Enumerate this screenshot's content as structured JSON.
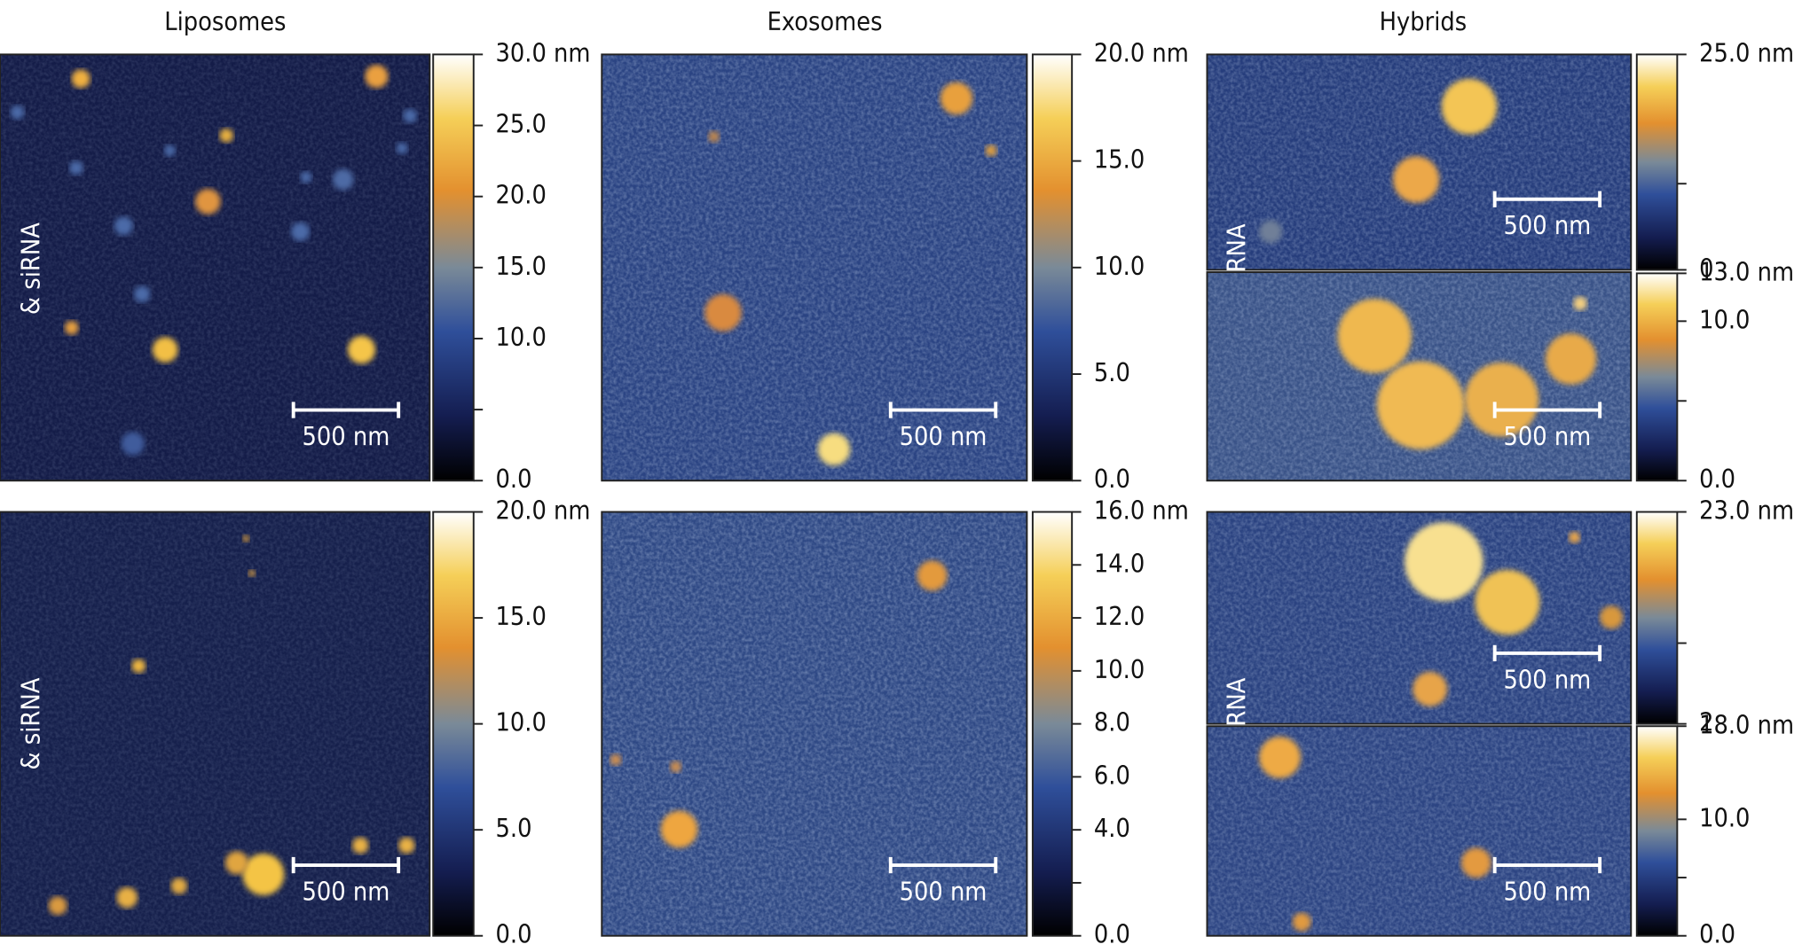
{
  "columns": [
    "Liposomes",
    "Exosomes",
    "Hybrids"
  ],
  "panels": [
    {
      "side_label": "& siRNA",
      "scale_bar": "500 nm",
      "colorbar": {
        "lim": [
          0,
          30
        ],
        "ticks": [
          0,
          5,
          10,
          15,
          20,
          25,
          30
        ],
        "tick_labels": [
          {
            "value": 30,
            "label": "30.0 nm"
          },
          {
            "value": 25,
            "label": "25.0"
          },
          {
            "value": 20,
            "label": "20.0"
          },
          {
            "value": 15,
            "label": "15.0"
          },
          {
            "value": 10,
            "label": "10.0"
          },
          {
            "value": 0,
            "label": "0.0"
          }
        ]
      }
    },
    {
      "scale_bar": "500 nm",
      "colorbar": {
        "lim": [
          0,
          20
        ],
        "ticks": [
          0,
          5,
          10,
          15,
          20
        ],
        "tick_labels": [
          {
            "value": 20,
            "label": "20.0 nm"
          },
          {
            "value": 15,
            "label": "15.0"
          },
          {
            "value": 10,
            "label": "10.0"
          },
          {
            "value": 5,
            "label": "5.0"
          },
          {
            "value": 0,
            "label": "0.0"
          }
        ]
      }
    },
    {
      "side_label": "& siRNA",
      "scale_bar": "500 nm",
      "colorbar": {
        "lim": [
          0,
          25
        ],
        "ticks": [
          0,
          10,
          25
        ],
        "tick_labels": [
          {
            "value": 25,
            "label": "25.0 nm"
          },
          {
            "value": 0,
            "label": "0"
          }
        ]
      }
    },
    {
      "scale_bar": "500 nm",
      "colorbar": {
        "lim": [
          0,
          13
        ],
        "ticks": [
          0,
          5,
          10,
          13
        ],
        "tick_labels": [
          {
            "value": 13,
            "label": "13.0 nm"
          },
          {
            "value": 10,
            "label": "10.0"
          },
          {
            "value": 0,
            "label": "0.0"
          }
        ]
      }
    },
    {
      "side_label": "& siRNA",
      "scale_bar": "500 nm",
      "colorbar": {
        "lim": [
          0,
          20
        ],
        "ticks": [
          0,
          5,
          10,
          15,
          20
        ],
        "tick_labels": [
          {
            "value": 20,
            "label": "20.0 nm"
          },
          {
            "value": 15,
            "label": "15.0"
          },
          {
            "value": 10,
            "label": "10.0"
          },
          {
            "value": 5,
            "label": "5.0"
          },
          {
            "value": 0,
            "label": "0.0"
          }
        ]
      }
    },
    {
      "scale_bar": "500 nm",
      "colorbar": {
        "lim": [
          0,
          16
        ],
        "ticks": [
          0,
          2,
          4,
          6,
          8,
          10,
          12,
          14,
          16
        ],
        "tick_labels": [
          {
            "value": 16,
            "label": "16.0 nm"
          },
          {
            "value": 14,
            "label": "14.0"
          },
          {
            "value": 12,
            "label": "12.0"
          },
          {
            "value": 10,
            "label": "10.0"
          },
          {
            "value": 8,
            "label": "8.0"
          },
          {
            "value": 6,
            "label": "6.0"
          },
          {
            "value": 4,
            "label": "4.0"
          },
          {
            "value": 0,
            "label": "0.0"
          }
        ]
      }
    },
    {
      "side_label": "& siRNA",
      "scale_bar": "500 nm",
      "colorbar": {
        "lim": [
          2,
          23
        ],
        "ticks": [
          2,
          10,
          23
        ],
        "tick_labels": [
          {
            "value": 23,
            "label": "23.0 nm"
          },
          {
            "value": 2,
            "label": "2"
          }
        ]
      }
    },
    {
      "scale_bar": "500 nm",
      "colorbar": {
        "lim": [
          0,
          18
        ],
        "ticks": [
          0,
          5,
          10,
          18
        ],
        "tick_labels": [
          {
            "value": 18,
            "label": "18.0 nm"
          },
          {
            "value": 10,
            "label": "10.0"
          },
          {
            "value": 0,
            "label": "0.0"
          }
        ]
      }
    }
  ]
}
